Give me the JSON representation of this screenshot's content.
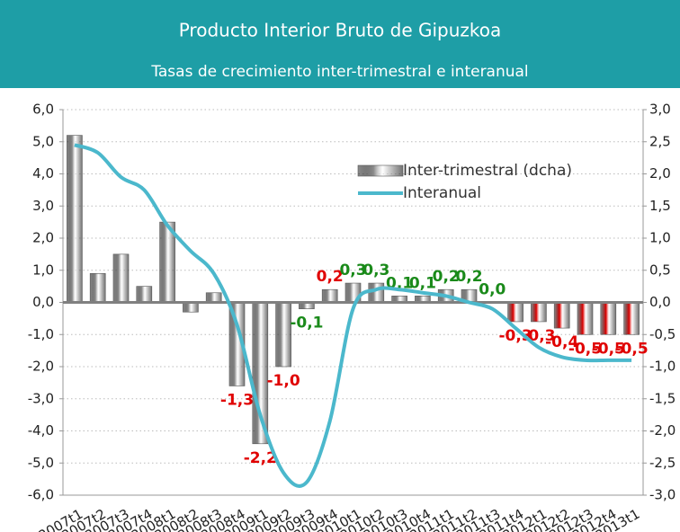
{
  "chart_data": {
    "type": "bar",
    "title": "Producto Interior Bruto de Gipuzkoa",
    "subtitle": "Tasas de crecimiento inter-trimestral e interanual",
    "header_color": "#1e9ea6",
    "categories": [
      "2007t1",
      "2007t2",
      "2007t3",
      "2007t4",
      "2008t1",
      "2008t2",
      "2008t3",
      "2008t4",
      "2009t1",
      "2009t2",
      "2009t3",
      "2009t4",
      "2010t1",
      "2010t2",
      "2010t3",
      "2010t4",
      "2011t1",
      "2011t2",
      "2011t3",
      "2011t4",
      "2012t1",
      "2012t2",
      "2012t3",
      "2012t4",
      "2013t1"
    ],
    "series": [
      {
        "name": "Inter-trimestral (dcha)",
        "type": "bar",
        "axis": "y2",
        "color": "#8c8c8c",
        "colors": [
          "#8c8c8c",
          "#8c8c8c",
          "#8c8c8c",
          "#8c8c8c",
          "#8c8c8c",
          "#8c8c8c",
          "#8c8c8c",
          "#8c8c8c",
          "#8c8c8c",
          "#8c8c8c",
          "#8c8c8c",
          "#8c8c8c",
          "#8c8c8c",
          "#8c8c8c",
          "#8c8c8c",
          "#8c8c8c",
          "#8c8c8c",
          "#8c8c8c",
          "#8c8c8c",
          "#e00000",
          "#e00000",
          "#e00000",
          "#e00000",
          "#e00000",
          "#e00000"
        ],
        "values": [
          2.6,
          0.45,
          0.75,
          0.25,
          1.25,
          -0.15,
          0.15,
          -1.3,
          -2.2,
          -1.0,
          -0.1,
          0.2,
          0.3,
          0.3,
          0.1,
          0.1,
          0.2,
          0.2,
          0.0,
          -0.3,
          -0.3,
          -0.4,
          -0.5,
          -0.5,
          -0.5
        ],
        "value_labels": [
          null,
          null,
          null,
          null,
          null,
          null,
          null,
          "-1,3",
          "-2,2",
          "-1,0",
          "-0,1",
          "0,2",
          "0,3",
          "0,3",
          "0,1",
          "0,1",
          "0,2",
          "0,2",
          "0,0",
          "-0,3",
          "-0,3",
          "-0,4",
          "-0,5",
          "-0,5",
          "-0,5"
        ],
        "label_colors": [
          null,
          null,
          null,
          null,
          null,
          null,
          null,
          "#e00000",
          "#e00000",
          "#e00000",
          "#1a8a1a",
          "#e00000",
          "#1a8a1a",
          "#1a8a1a",
          "#1a8a1a",
          "#1a8a1a",
          "#1a8a1a",
          "#1a8a1a",
          "#1a8a1a",
          "#e00000",
          "#e00000",
          "#e00000",
          "#e00000",
          "#e00000",
          "#e00000"
        ]
      },
      {
        "name": "Interanual",
        "type": "line",
        "color": "#4bb8cc",
        "values": [
          4.9,
          4.66,
          3.9,
          3.5,
          2.4,
          1.6,
          0.9,
          -0.7,
          -3.5,
          -5.3,
          -5.6,
          -3.7,
          -0.2,
          0.4,
          0.4,
          0.3,
          0.2,
          0.0,
          -0.2,
          -0.8,
          -1.4,
          -1.7,
          -1.8,
          -1.8,
          -1.8
        ]
      }
    ],
    "ylim": [
      -6,
      6
    ],
    "yticks": [
      {
        "value": 6,
        "label": "6,0"
      },
      {
        "value": 5,
        "label": "5,0"
      },
      {
        "value": 4,
        "label": "4,0"
      },
      {
        "value": 3,
        "label": "3,0"
      },
      {
        "value": 2,
        "label": "2,0"
      },
      {
        "value": 1,
        "label": "1,0"
      },
      {
        "value": 0,
        "label": "0,0"
      },
      {
        "value": -1,
        "label": "-1,0"
      },
      {
        "value": -2,
        "label": "-2,0"
      },
      {
        "value": -3,
        "label": "-3,0"
      },
      {
        "value": -4,
        "label": "-4,0"
      },
      {
        "value": -5,
        "label": "-5,0"
      },
      {
        "value": -6,
        "label": "-6,0"
      }
    ],
    "y2lim": [
      -3,
      3
    ],
    "y2ticks": [
      {
        "value": 3,
        "label": "3,0"
      },
      {
        "value": 2.5,
        "label": "2,5"
      },
      {
        "value": 2,
        "label": "2,0"
      },
      {
        "value": 1.5,
        "label": "1,5"
      },
      {
        "value": 1,
        "label": "1,0"
      },
      {
        "value": 0.5,
        "label": "0,5"
      },
      {
        "value": 0,
        "label": "0,0"
      },
      {
        "value": -0.5,
        "label": "-0,5"
      },
      {
        "value": -1,
        "label": "-1,0"
      },
      {
        "value": -1.5,
        "label": "-1,5"
      },
      {
        "value": -2,
        "label": "-2,0"
      },
      {
        "value": -2.5,
        "label": "-2,5"
      },
      {
        "value": -3,
        "label": "-3,0"
      }
    ],
    "grid": true
  }
}
